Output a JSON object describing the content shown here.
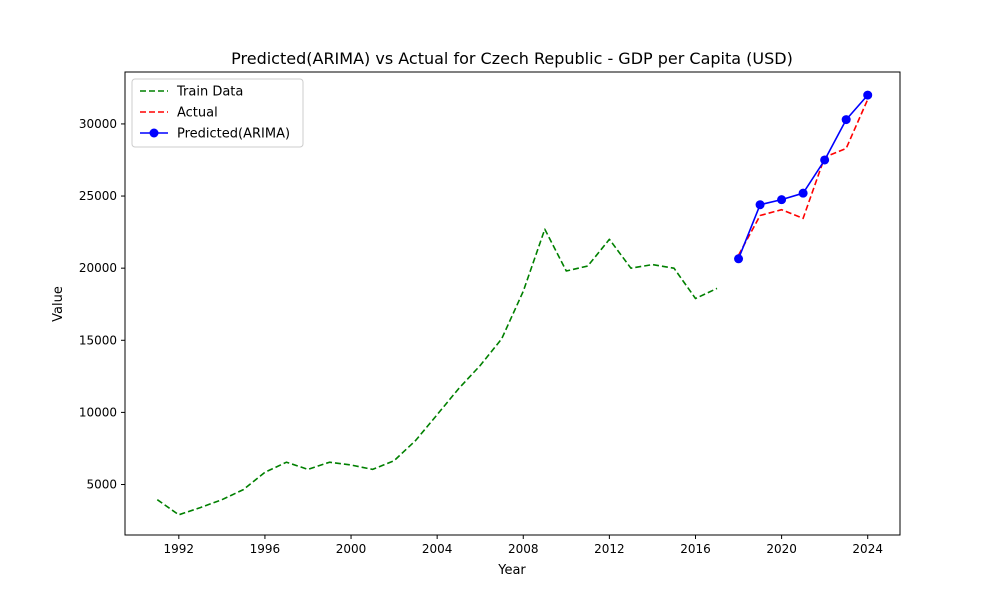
{
  "chart_data": {
    "type": "line",
    "title": "Predicted(ARIMA) vs Actual for Czech Republic - GDP per Capita (USD)",
    "xlabel": "Year",
    "ylabel": "Value",
    "xlim": [
      1989.5,
      2025.5
    ],
    "ylim": [
      1500,
      33600
    ],
    "x_ticks": [
      1992,
      1996,
      2000,
      2004,
      2008,
      2012,
      2016,
      2020,
      2024
    ],
    "y_ticks": [
      5000,
      10000,
      15000,
      20000,
      25000,
      30000
    ],
    "grid": false,
    "legend_position": "top-left",
    "series": [
      {
        "name": "Train Data",
        "color": "#008000",
        "style": "dashed",
        "marker": "none",
        "x": [
          1991,
          1992,
          1993,
          1994,
          1995,
          1996,
          1997,
          1998,
          1999,
          2000,
          2001,
          2002,
          2003,
          2004,
          2005,
          2006,
          2007,
          2008,
          2009,
          2010,
          2011,
          2012,
          2013,
          2014,
          2015,
          2016,
          2017
        ],
        "y": [
          3950,
          2900,
          3400,
          3950,
          4650,
          5850,
          6550,
          6050,
          6550,
          6350,
          6050,
          6650,
          8050,
          9850,
          11650,
          13250,
          15100,
          18400,
          22700,
          19800,
          20150,
          22000,
          20000,
          20250,
          20000,
          17900,
          18600
        ]
      },
      {
        "name": "Actual",
        "color": "#ff0000",
        "style": "dashed",
        "marker": "none",
        "x": [
          2018,
          2019,
          2020,
          2021,
          2022,
          2023,
          2024
        ],
        "y": [
          20900,
          23650,
          24050,
          23450,
          27700,
          28300,
          31700
        ]
      },
      {
        "name": "Predicted(ARIMA)",
        "color": "#0000ff",
        "style": "solid",
        "marker": "circle",
        "x": [
          2018,
          2019,
          2020,
          2021,
          2022,
          2023,
          2024
        ],
        "y": [
          20650,
          24400,
          24750,
          25200,
          27500,
          30300,
          32000
        ]
      }
    ]
  }
}
